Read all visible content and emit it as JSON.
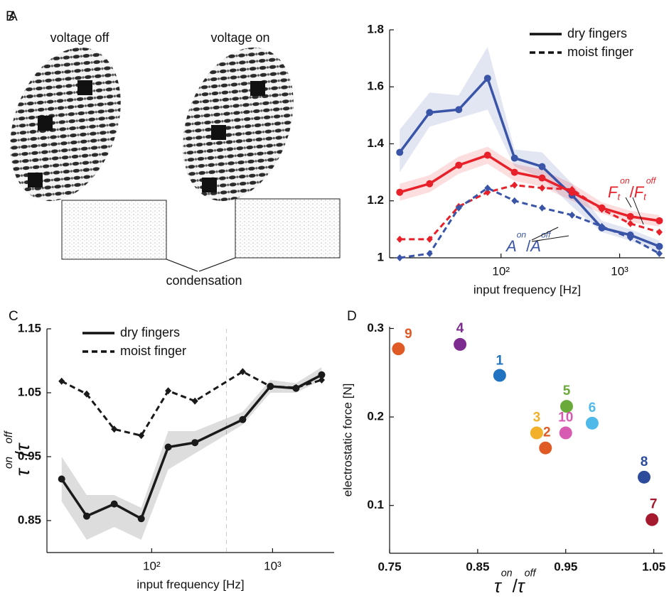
{
  "panel_a": {
    "label": "A",
    "titles": [
      "voltage off",
      "voltage on"
    ],
    "annotation": "condensation"
  },
  "chart_data": [
    {
      "type": "line",
      "panel_label": "B",
      "xlabel": "input frequency [Hz]",
      "log_x": true,
      "x": [
        14,
        25,
        44,
        77,
        130,
        222,
        397,
        708,
        1231,
        2163
      ],
      "xlim": [
        11.5,
        2400
      ],
      "xticks": [
        {
          "value": 100,
          "label": "10²"
        },
        {
          "value": 1000,
          "label": "10³"
        }
      ],
      "ylim": [
        1,
        1.8
      ],
      "yticks": [
        1,
        1.2,
        1.4,
        1.6,
        1.8
      ],
      "legend": [
        {
          "label": "dry fingers",
          "dash": false
        },
        {
          "label": "moist finger",
          "dash": true
        }
      ],
      "legend_position": "upper right",
      "series": [
        {
          "color": "#3a55a8",
          "dash": false,
          "marker": "circle",
          "values": [
            1.37,
            1.51,
            1.52,
            1.63,
            1.35,
            1.32,
            1.22,
            1.105,
            1.08,
            1.04
          ],
          "lower": [
            1.3,
            1.46,
            1.49,
            1.52,
            1.32,
            1.28,
            1.18,
            1.09,
            1.06,
            1.02
          ],
          "upper": [
            1.45,
            1.58,
            1.57,
            1.74,
            1.38,
            1.37,
            1.26,
            1.13,
            1.1,
            1.06
          ]
        },
        {
          "color": "#e8202a",
          "dash": false,
          "marker": "circle",
          "values": [
            1.23,
            1.26,
            1.325,
            1.36,
            1.3,
            1.28,
            1.23,
            1.175,
            1.145,
            1.13
          ],
          "lower": [
            1.2,
            1.23,
            1.295,
            1.33,
            1.27,
            1.25,
            1.2,
            1.155,
            1.125,
            1.11
          ],
          "upper": [
            1.26,
            1.29,
            1.355,
            1.39,
            1.33,
            1.31,
            1.26,
            1.195,
            1.165,
            1.15
          ]
        },
        {
          "color": "#e8202a",
          "dash": true,
          "marker": "diamond",
          "values": [
            1.065,
            1.065,
            1.18,
            1.23,
            1.255,
            1.245,
            1.24,
            1.17,
            1.12,
            1.09
          ]
        },
        {
          "color": "#3a55a8",
          "dash": true,
          "marker": "diamond",
          "values": [
            1.0,
            1.015,
            1.175,
            1.245,
            1.2,
            1.175,
            1.15,
            1.11,
            1.07,
            1.015
          ]
        }
      ],
      "annotations": [
        {
          "color": "#e8202a",
          "num": {
            "base": "F",
            "sub": "t",
            "sup": "on"
          },
          "sep": "/",
          "den": {
            "base": "F",
            "sub": "t",
            "sup": "off"
          }
        },
        {
          "color": "#3a55a8",
          "num": {
            "base": "A",
            "sup": "on"
          },
          "sep": "/",
          "den": {
            "base": "A",
            "sup": "off"
          }
        }
      ]
    },
    {
      "type": "line",
      "panel_label": "C",
      "xlabel": "input frequency [Hz]",
      "log_x": true,
      "ylabel": {
        "num": {
          "base": "τ",
          "sup": "on"
        },
        "sep": "/",
        "den": {
          "base": "τ",
          "sup": "off"
        }
      },
      "x": [
        18,
        29,
        49,
        82,
        137,
        228,
        566,
        959,
        1563,
        2547
      ],
      "xlim": [
        13.6,
        3230
      ],
      "xticks": [
        {
          "value": 100,
          "label": "10²"
        },
        {
          "value": 1000,
          "label": "10³"
        }
      ],
      "ylim": [
        0.8,
        1.15
      ],
      "yticks": [
        0.85,
        0.95,
        1.05,
        1.15
      ],
      "vline": 415,
      "legend": [
        {
          "label": "dry fingers",
          "dash": false
        },
        {
          "label": "moist finger",
          "dash": true
        }
      ],
      "legend_position": "upper left",
      "series": [
        {
          "color": "#1a1a1a",
          "dash": false,
          "marker": "circle",
          "values": [
            0.915,
            0.857,
            0.876,
            0.853,
            0.965,
            0.972,
            1.008,
            1.06,
            1.057,
            1.078
          ],
          "lower": [
            0.88,
            0.82,
            0.84,
            0.82,
            0.93,
            0.955,
            1.0,
            1.05,
            1.05,
            1.07
          ],
          "upper": [
            0.95,
            0.89,
            0.89,
            0.87,
            0.99,
            0.99,
            1.02,
            1.07,
            1.065,
            1.09
          ]
        },
        {
          "color": "#1a1a1a",
          "dash": true,
          "marker": "diamond",
          "values": [
            1.068,
            1.048,
            0.993,
            0.983,
            1.053,
            1.037,
            1.083,
            1.06,
            1.058,
            1.07
          ]
        }
      ]
    },
    {
      "type": "scatter",
      "panel_label": "D",
      "ylabel": "electrostatic force [N]",
      "xlabel": {
        "num": {
          "base": "τ",
          "sup": "on"
        },
        "sep": "/",
        "den": {
          "base": "τ",
          "sup": "off"
        }
      },
      "labels": [
        "9",
        "4",
        "1",
        "5",
        "6",
        "3",
        "2",
        "10",
        "8",
        "7"
      ],
      "x": [
        0.76,
        0.83,
        0.875,
        0.951,
        0.98,
        0.917,
        0.927,
        0.95,
        1.039,
        1.048
      ],
      "values": [
        0.277,
        0.282,
        0.247,
        0.212,
        0.193,
        0.182,
        0.165,
        0.182,
        0.132,
        0.084
      ],
      "colors": [
        "#e05a26",
        "#7b2c8e",
        "#1f73c1",
        "#6aaa3a",
        "#4fb9ea",
        "#f2b02b",
        "#e05a26",
        "#d75bb0",
        "#2c4c9b",
        "#a5192e"
      ],
      "xlim": [
        0.75,
        1.06
      ],
      "xticks": [
        0.75,
        0.85,
        0.95,
        1.05
      ],
      "ylim": [
        0.046,
        0.302
      ],
      "yticks": [
        0.1,
        0.2,
        0.3
      ]
    }
  ]
}
